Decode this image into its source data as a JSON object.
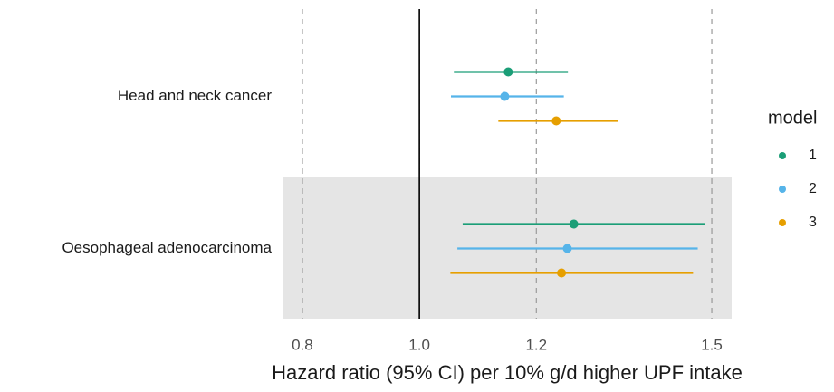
{
  "chart_data": {
    "type": "forest",
    "categories": [
      "Head and neck cancer",
      "Oesophageal adenocarcinoma"
    ],
    "series": [
      {
        "name": "1",
        "color": "#1b9e77",
        "values": [
          1.152,
          1.264
        ],
        "lower": [
          1.059,
          1.074
        ],
        "upper": [
          1.254,
          1.488
        ]
      },
      {
        "name": "2",
        "color": "#56b4e9",
        "values": [
          1.146,
          1.253
        ],
        "lower": [
          1.054,
          1.065
        ],
        "upper": [
          1.247,
          1.476
        ]
      },
      {
        "name": "3",
        "color": "#e69f00",
        "values": [
          1.234,
          1.243
        ],
        "lower": [
          1.135,
          1.053
        ],
        "upper": [
          1.34,
          1.468
        ]
      }
    ],
    "xlabel": "Hazard ratio (95% CI) per 10% g/d higher UPF intake",
    "xlim": [
      0.766,
      1.534
    ],
    "xticks": [
      0.8,
      {
        "value": 1,
        "label": "1.0"
      },
      1.2,
      1.5
    ],
    "ref_line": 1,
    "legend_title": "model",
    "legend": "right"
  }
}
